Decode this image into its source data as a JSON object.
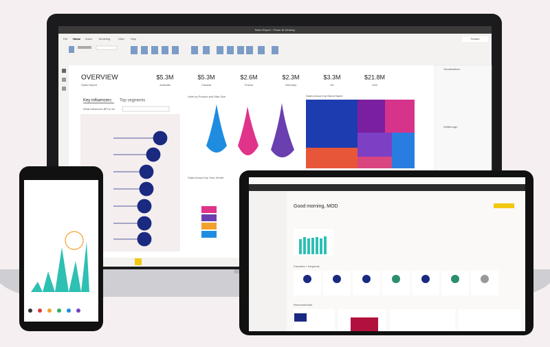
{
  "laptop": {
    "window_title": "Sales Report - Power BI Desktop",
    "tabs": [
      "File",
      "Home",
      "Insert",
      "Modeling",
      "View",
      "Help"
    ],
    "publish": "Publish",
    "overview": {
      "title": "OVERVIEW",
      "subtitle": "Sales Report"
    },
    "kpis": [
      {
        "value": "$5.3M",
        "label": "Australia"
      },
      {
        "value": "$5.3M",
        "label": "Canada"
      },
      {
        "value": "$2.6M",
        "label": "France"
      },
      {
        "value": "$2.3M",
        "label": "Germany"
      },
      {
        "value": "$3.3M",
        "label": "UK"
      },
      {
        "value": "$21.8M",
        "label": "USA"
      }
    ],
    "key_influencers": {
      "tabs": [
        "Key influencers",
        "Top segments"
      ],
      "question": "What influences BPI to be"
    },
    "visual_titles": [
      "Units by Product and Sale Size",
      "Sales Amount by Brand Name",
      "Sales Amount by Year, Month"
    ],
    "panes": {
      "visualizations": "Visualizations",
      "drillthrough": "Drillthrough"
    }
  },
  "tablet": {
    "greeting": "Good morning, MOD",
    "sections": [
      "Favorites + frequents",
      "Recommended"
    ]
  }
}
